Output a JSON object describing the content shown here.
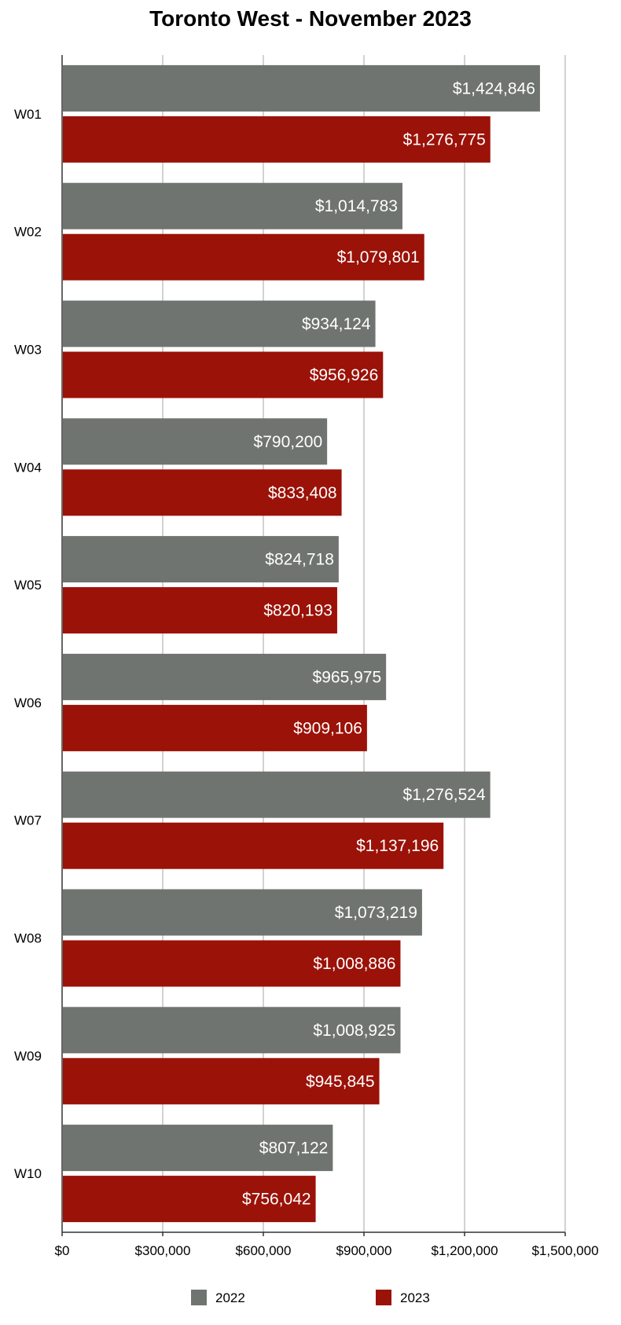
{
  "chart_data": {
    "type": "bar",
    "orientation": "horizontal",
    "title": "Toronto West - November 2023",
    "categories": [
      "W01",
      "W02",
      "W03",
      "W04",
      "W05",
      "W06",
      "W07",
      "W08",
      "W09",
      "W10"
    ],
    "series": [
      {
        "name": "2022",
        "color": "#6f7471",
        "values": [
          1424846,
          1014783,
          934124,
          790200,
          824718,
          965975,
          1276524,
          1073219,
          1008925,
          807122
        ],
        "labels": [
          "$1,424,846",
          "$1,014,783",
          "$934,124",
          "$790,200",
          "$824,718",
          "$965,975",
          "$1,276,524",
          "$1,073,219",
          "$1,008,925",
          "$807,122"
        ]
      },
      {
        "name": "2023",
        "color": "#9b1208",
        "values": [
          1276775,
          1079801,
          956926,
          833408,
          820193,
          909106,
          1137196,
          1008886,
          945845,
          756042
        ],
        "labels": [
          "$1,276,775",
          "$1,079,801",
          "$956,926",
          "$833,408",
          "$820,193",
          "$909,106",
          "$1,137,196",
          "$1,008,886",
          "$945,845",
          "$756,042"
        ]
      }
    ],
    "xlim": [
      0,
      1500000
    ],
    "xticks": [
      0,
      300000,
      600000,
      900000,
      1200000,
      1500000
    ],
    "xtick_labels": [
      "$0",
      "$300,000",
      "$600,000",
      "$900,000",
      "$1,200,000",
      "$1,500,000"
    ],
    "grid": true,
    "legend_position": "bottom"
  }
}
